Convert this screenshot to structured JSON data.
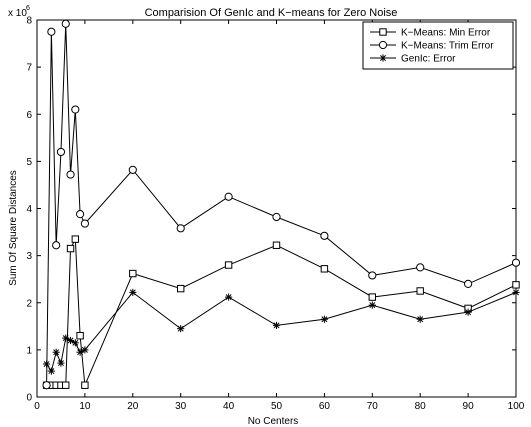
{
  "chart_data": {
    "type": "line",
    "title": "Comparision Of GenIc and K−means for Zero Noise",
    "xlabel": "No Centers",
    "ylabel": "Sum Of Square Distances",
    "y_multiplier_base": "x 10",
    "y_multiplier_exp": "6",
    "xlim": [
      0,
      100
    ],
    "ylim": [
      0,
      8
    ],
    "xticks": [
      0,
      10,
      20,
      30,
      40,
      50,
      60,
      70,
      80,
      90,
      100
    ],
    "yticks": [
      0,
      1,
      2,
      3,
      4,
      5,
      6,
      7,
      8
    ],
    "grid": false,
    "legend_position": "top-right",
    "series": [
      {
        "name": "K−Means: Min Error",
        "marker": "square",
        "x": [
          2,
          3,
          4,
          5,
          6,
          7,
          8,
          9,
          10,
          20,
          30,
          40,
          50,
          60,
          70,
          80,
          90,
          100
        ],
        "values": [
          0.25,
          0.25,
          0.25,
          0.25,
          0.25,
          3.15,
          3.35,
          1.3,
          0.25,
          2.62,
          2.3,
          2.8,
          3.22,
          2.72,
          2.12,
          2.25,
          1.88,
          2.38
        ]
      },
      {
        "name": "K−Means: Trim Error",
        "marker": "circle",
        "x": [
          2,
          3,
          4,
          5,
          6,
          7,
          8,
          9,
          10,
          20,
          30,
          40,
          50,
          60,
          70,
          80,
          90,
          100
        ],
        "values": [
          0.25,
          7.75,
          3.22,
          5.2,
          7.92,
          4.72,
          6.1,
          3.88,
          3.68,
          4.82,
          3.58,
          4.25,
          3.82,
          3.42,
          2.58,
          2.75,
          2.4,
          2.85
        ]
      },
      {
        "name": "GenIc: Error",
        "marker": "asterisk",
        "x": [
          2,
          3,
          4,
          5,
          6,
          7,
          8,
          9,
          10,
          20,
          30,
          40,
          50,
          60,
          70,
          80,
          90,
          100
        ],
        "values": [
          0.7,
          0.55,
          0.95,
          0.72,
          1.25,
          1.2,
          1.15,
          0.95,
          1.0,
          2.22,
          1.45,
          2.12,
          1.52,
          1.65,
          1.95,
          1.65,
          1.8,
          2.22
        ]
      }
    ]
  }
}
